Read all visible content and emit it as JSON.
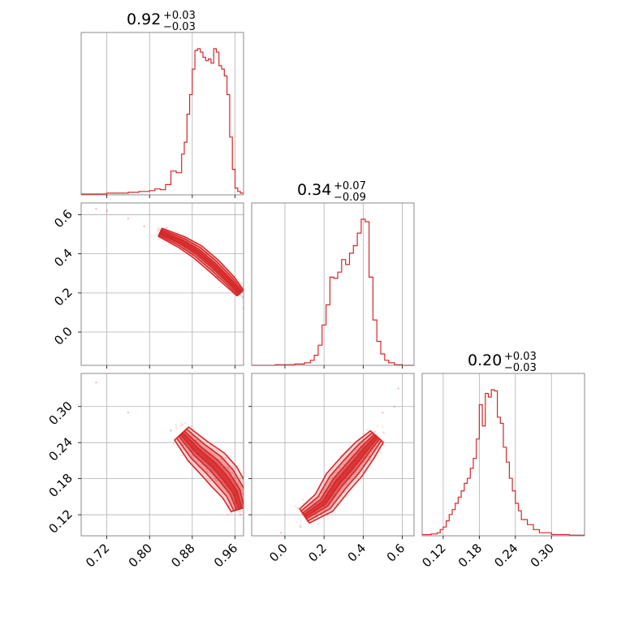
{
  "colors": {
    "series": "#d62728",
    "frame": "#7f7f7f",
    "grid": "#b0b0b0"
  },
  "chart_data": {
    "type": "corner",
    "parameters": [
      {
        "range": [
          0.672,
          0.976
        ],
        "ticks": [
          0.72,
          0.8,
          0.88,
          0.96
        ],
        "tick_labels": [
          "0.72",
          "0.80",
          "0.88",
          "0.96"
        ]
      },
      {
        "range": [
          -0.17,
          0.66
        ],
        "ticks": [
          0.0,
          0.2,
          0.4,
          0.6
        ],
        "tick_labels": [
          "0.0",
          "0.2",
          "0.4",
          "0.6"
        ]
      },
      {
        "range": [
          0.085,
          0.355
        ],
        "ticks": [
          0.12,
          0.18,
          0.24,
          0.3
        ],
        "tick_labels": [
          "0.12",
          "0.18",
          "0.24",
          "0.30"
        ]
      }
    ],
    "titles": [
      {
        "value": "0.92",
        "plus": "+0.03",
        "minus": "−0.03"
      },
      {
        "value": "0.34",
        "plus": "+0.07",
        "minus": "−0.09"
      },
      {
        "value": "0.20",
        "plus": "+0.03",
        "minus": "−0.03"
      }
    ],
    "histograms": [
      {
        "bin_edges": [
          0.672,
          0.7,
          0.72,
          0.74,
          0.76,
          0.78,
          0.8,
          0.81,
          0.82,
          0.83,
          0.84,
          0.85,
          0.86,
          0.865,
          0.87,
          0.875,
          0.88,
          0.885,
          0.89,
          0.895,
          0.9,
          0.905,
          0.91,
          0.915,
          0.92,
          0.925,
          0.93,
          0.935,
          0.94,
          0.945,
          0.95,
          0.955,
          0.96,
          0.965,
          0.97,
          0.976
        ],
        "values": [
          1,
          1,
          2,
          2,
          3,
          4,
          5,
          7,
          6,
          12,
          28,
          26,
          48,
          62,
          95,
          118,
          148,
          170,
          172,
          168,
          162,
          158,
          160,
          155,
          172,
          168,
          152,
          148,
          140,
          118,
          68,
          30,
          8,
          4,
          2
        ]
      },
      {
        "bin_edges": [
          -0.17,
          -0.05,
          0.05,
          0.1,
          0.13,
          0.15,
          0.17,
          0.19,
          0.21,
          0.23,
          0.25,
          0.27,
          0.29,
          0.31,
          0.33,
          0.35,
          0.37,
          0.39,
          0.41,
          0.43,
          0.45,
          0.47,
          0.49,
          0.51,
          0.53,
          0.56,
          0.6,
          0.66
        ],
        "values": [
          0,
          1,
          2,
          4,
          8,
          16,
          32,
          64,
          96,
          140,
          138,
          148,
          168,
          160,
          178,
          190,
          210,
          232,
          228,
          140,
          72,
          38,
          18,
          8,
          4,
          1,
          0
        ]
      },
      {
        "bin_edges": [
          0.085,
          0.1,
          0.11,
          0.115,
          0.12,
          0.125,
          0.13,
          0.135,
          0.14,
          0.145,
          0.15,
          0.155,
          0.16,
          0.165,
          0.17,
          0.175,
          0.18,
          0.185,
          0.19,
          0.195,
          0.2,
          0.205,
          0.21,
          0.215,
          0.22,
          0.225,
          0.23,
          0.235,
          0.24,
          0.245,
          0.25,
          0.26,
          0.27,
          0.28,
          0.3,
          0.33,
          0.355
        ],
        "values": [
          2,
          3,
          5,
          10,
          14,
          24,
          34,
          42,
          52,
          62,
          72,
          84,
          92,
          108,
          124,
          155,
          210,
          176,
          228,
          222,
          234,
          232,
          190,
          180,
          142,
          118,
          92,
          72,
          52,
          40,
          26,
          18,
          10,
          5,
          2,
          1
        ]
      }
    ],
    "pairs": [
      {
        "x_param": 0,
        "y_param": 1,
        "ridge": [
          [
            0.82,
            0.51
          ],
          [
            0.86,
            0.46
          ],
          [
            0.89,
            0.41
          ],
          [
            0.92,
            0.34
          ],
          [
            0.95,
            0.26
          ],
          [
            0.97,
            0.2
          ]
        ],
        "width": 0.025,
        "outliers": [
          [
            0.7,
            0.63
          ],
          [
            0.72,
            0.62
          ],
          [
            0.76,
            0.58
          ],
          [
            0.79,
            0.54
          ],
          [
            0.975,
            0.18
          ],
          [
            0.976,
            0.12
          ]
        ]
      },
      {
        "x_param": 0,
        "y_param": 2,
        "ridge": [
          [
            0.86,
            0.255
          ],
          [
            0.89,
            0.226
          ],
          [
            0.92,
            0.203
          ],
          [
            0.94,
            0.183
          ],
          [
            0.96,
            0.158
          ],
          [
            0.97,
            0.13
          ]
        ],
        "width": 0.018,
        "outliers": [
          [
            0.7,
            0.34
          ],
          [
            0.76,
            0.29
          ],
          [
            0.84,
            0.26
          ],
          [
            0.97,
            0.12
          ]
        ]
      },
      {
        "x_param": 1,
        "y_param": 2,
        "ridge": [
          [
            0.1,
            0.118
          ],
          [
            0.2,
            0.14
          ],
          [
            0.27,
            0.174
          ],
          [
            0.34,
            0.2
          ],
          [
            0.41,
            0.228
          ],
          [
            0.47,
            0.25
          ]
        ],
        "width": 0.016,
        "outliers": [
          [
            -0.02,
            0.09
          ],
          [
            0.08,
            0.1
          ],
          [
            0.5,
            0.29
          ],
          [
            0.56,
            0.3
          ],
          [
            0.58,
            0.33
          ]
        ]
      }
    ]
  }
}
